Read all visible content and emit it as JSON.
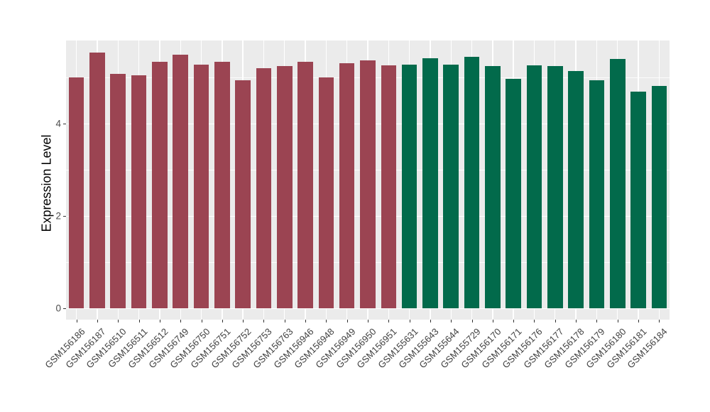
{
  "figure": {
    "background_color": "#FFFFFF",
    "panel_background_color": "#EBEBEB",
    "grid_color": "#FFFFFF",
    "tick_mark_color": "#333333",
    "tick_label_color": "#4D4D4D"
  },
  "chart_data": {
    "type": "bar",
    "title": "",
    "xlabel": "",
    "ylabel": "Expression Level",
    "ylim": [
      0,
      5.78
    ],
    "yticks": [
      0,
      2,
      4
    ],
    "ytick_labels": [
      "0",
      "2",
      "4"
    ],
    "yticks_minor": [
      1,
      3,
      5
    ],
    "grid": "on",
    "legend_position": "none",
    "categories": [
      "GSM156186",
      "GSM156187",
      "GSM156510",
      "GSM156511",
      "GSM156512",
      "GSM156749",
      "GSM156750",
      "GSM156751",
      "GSM156752",
      "GSM156753",
      "GSM156763",
      "GSM156946",
      "GSM156948",
      "GSM156949",
      "GSM156950",
      "GSM156951",
      "GSM155631",
      "GSM155643",
      "GSM155644",
      "GSM155729",
      "GSM156170",
      "GSM156171",
      "GSM156176",
      "GSM156177",
      "GSM156178",
      "GSM156179",
      "GSM156180",
      "GSM156181",
      "GSM156184"
    ],
    "values": [
      5.0,
      5.54,
      5.08,
      5.04,
      5.34,
      5.5,
      5.28,
      5.34,
      4.94,
      5.2,
      5.24,
      5.34,
      5.0,
      5.31,
      5.37,
      5.26,
      5.28,
      5.42,
      5.27,
      5.44,
      5.24,
      4.97,
      5.26,
      5.24,
      5.14,
      4.94,
      5.4,
      4.7,
      4.82
    ],
    "groups": [
      "red",
      "red",
      "red",
      "red",
      "red",
      "red",
      "red",
      "red",
      "red",
      "red",
      "red",
      "red",
      "red",
      "red",
      "red",
      "red",
      "green",
      "green",
      "green",
      "green",
      "green",
      "green",
      "green",
      "green",
      "green",
      "green",
      "green",
      "green",
      "green"
    ],
    "group_colors": {
      "red": "#9B4452",
      "green": "#026A4B"
    }
  }
}
